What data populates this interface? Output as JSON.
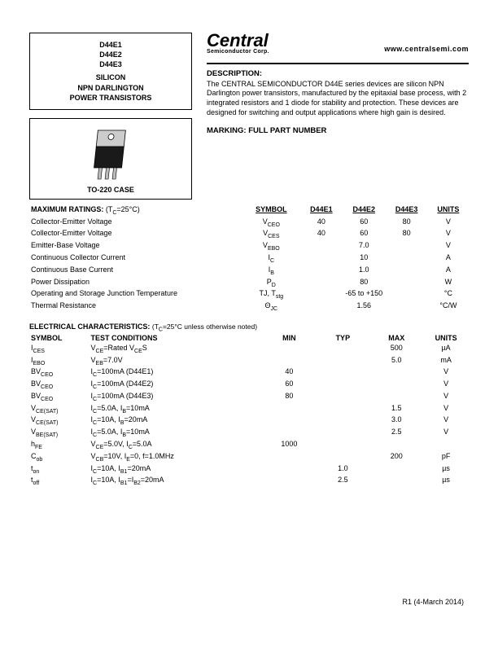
{
  "parts": [
    "D44E1",
    "D44E2",
    "D44E3"
  ],
  "product_type": [
    "SILICON",
    "NPN DARLINGTON",
    "POWER TRANSISTORS"
  ],
  "case_label": "TO-220 CASE",
  "logo_main": "Central",
  "logo_sub": "Semiconductor Corp.",
  "url": "www.centralsemi.com",
  "desc_head": "DESCRIPTION:",
  "desc_body": "The CENTRAL SEMICONDUCTOR D44E series devices are silicon NPN Darlington power transistors, manufactured by the epitaxial base process, with 2 integrated resistors and 1 diode for stability and protection. These devices are designed for switching and output applications where high gain is desired.",
  "marking": "MARKING: FULL PART NUMBER",
  "ratings_head": "MAXIMUM RATINGS:",
  "ratings_cond": "(TC=25°C)",
  "ratings_cols": {
    "sym": "SYMBOL",
    "p1": "D44E1",
    "p2": "D44E2",
    "p3": "D44E3",
    "units": "UNITS"
  },
  "ratings": [
    {
      "param": "Collector-Emitter Voltage",
      "sym": "V",
      "sub": "CEO",
      "v1": "40",
      "v2": "60",
      "v3": "80",
      "u": "V"
    },
    {
      "param": "Collector-Emitter Voltage",
      "sym": "V",
      "sub": "CES",
      "v1": "40",
      "v2": "60",
      "v3": "80",
      "u": "V"
    },
    {
      "param": "Emitter-Base Voltage",
      "sym": "V",
      "sub": "EBO",
      "v1": "",
      "v2": "7.0",
      "v3": "",
      "u": "V"
    },
    {
      "param": "Continuous Collector Current",
      "sym": "I",
      "sub": "C",
      "v1": "",
      "v2": "10",
      "v3": "",
      "u": "A"
    },
    {
      "param": "Continuous Base Current",
      "sym": "I",
      "sub": "B",
      "v1": "",
      "v2": "1.0",
      "v3": "",
      "u": "A"
    },
    {
      "param": "Power Dissipation",
      "sym": "P",
      "sub": "D",
      "v1": "",
      "v2": "80",
      "v3": "",
      "u": "W"
    },
    {
      "param": "Operating and Storage Junction Temperature",
      "sym": "TJ, T",
      "sub": "stg",
      "v1": "",
      "v2": "-65 to +150",
      "v3": "",
      "u": "°C"
    },
    {
      "param": "Thermal Resistance",
      "sym": "Θ",
      "sub": "JC",
      "v1": "",
      "v2": "1.56",
      "v3": "",
      "u": "°C/W"
    }
  ],
  "elec_head": "ELECTRICAL CHARACTERISTICS:",
  "elec_cond": "(TC=25°C unless otherwise noted)",
  "elec_cols": {
    "sym": "SYMBOL",
    "cond": "TEST CONDITIONS",
    "min": "MIN",
    "typ": "TYP",
    "max": "MAX",
    "units": "UNITS"
  },
  "elec": [
    {
      "s": "I",
      "ss": "CES",
      "cond": "VCE=Rated VCES",
      "min": "",
      "typ": "",
      "max": "500",
      "u": "µA"
    },
    {
      "s": "I",
      "ss": "EBO",
      "cond": "VEB=7.0V",
      "min": "",
      "typ": "",
      "max": "5.0",
      "u": "mA"
    },
    {
      "s": "BV",
      "ss": "CEO",
      "cond": "IC=100mA (D44E1)",
      "min": "40",
      "typ": "",
      "max": "",
      "u": "V"
    },
    {
      "s": "BV",
      "ss": "CEO",
      "cond": "IC=100mA (D44E2)",
      "min": "60",
      "typ": "",
      "max": "",
      "u": "V"
    },
    {
      "s": "BV",
      "ss": "CEO",
      "cond": "IC=100mA (D44E3)",
      "min": "80",
      "typ": "",
      "max": "",
      "u": "V"
    },
    {
      "s": "V",
      "ss": "CE(SAT)",
      "cond": "IC=5.0A, IB=10mA",
      "min": "",
      "typ": "",
      "max": "1.5",
      "u": "V"
    },
    {
      "s": "V",
      "ss": "CE(SAT)",
      "cond": "IC=10A, IB=20mA",
      "min": "",
      "typ": "",
      "max": "3.0",
      "u": "V"
    },
    {
      "s": "V",
      "ss": "BE(SAT)",
      "cond": "IC=5.0A, IB=10mA",
      "min": "",
      "typ": "",
      "max": "2.5",
      "u": "V"
    },
    {
      "s": "h",
      "ss": "FE",
      "cond": "VCE=5.0V, IC=5.0A",
      "min": "1000",
      "typ": "",
      "max": "",
      "u": ""
    },
    {
      "s": "C",
      "ss": "ob",
      "cond": "VCB=10V, IE=0, f=1.0MHz",
      "min": "",
      "typ": "",
      "max": "200",
      "u": "pF"
    },
    {
      "s": "t",
      "ss": "on",
      "cond": "IC=10A, IB1=20mA",
      "min": "",
      "typ": "1.0",
      "max": "",
      "u": "µs"
    },
    {
      "s": "t",
      "ss": "off",
      "cond": "IC=10A, IB1=IB2=20mA",
      "min": "",
      "typ": "2.5",
      "max": "",
      "u": "µs"
    }
  ],
  "revision": "R1 (4-March 2014)"
}
